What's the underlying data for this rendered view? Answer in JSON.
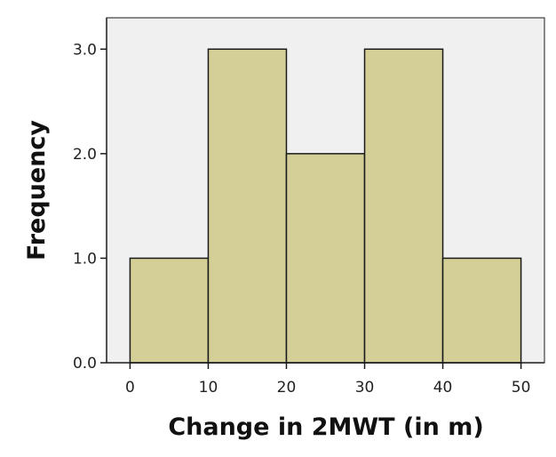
{
  "chart_data": {
    "type": "bar",
    "title": "",
    "xlabel": "Change in 2MWT (in m)",
    "ylabel": "Frequency",
    "bins": [
      {
        "start": 0,
        "end": 10,
        "value": 1
      },
      {
        "start": 10,
        "end": 20,
        "value": 3
      },
      {
        "start": 20,
        "end": 30,
        "value": 2
      },
      {
        "start": 30,
        "end": 40,
        "value": 3
      },
      {
        "start": 40,
        "end": 50,
        "value": 1
      }
    ],
    "xlim": [
      -3,
      53
    ],
    "ylim": [
      0,
      3.3
    ],
    "xticks": [
      0,
      10,
      20,
      30,
      40,
      50
    ],
    "xtick_labels": [
      "0",
      "10",
      "20",
      "30",
      "40",
      "50"
    ],
    "yticks": [
      0,
      1,
      2,
      3
    ],
    "ytick_labels": [
      "0.0",
      "1.0",
      "2.0",
      "3.0"
    ],
    "grid": false,
    "colors": {
      "bar_fill": "#d3cf97",
      "bar_stroke": "#1a1a1a",
      "plot_background": "#f0f0f0",
      "axis": "#1a1a1a"
    }
  }
}
